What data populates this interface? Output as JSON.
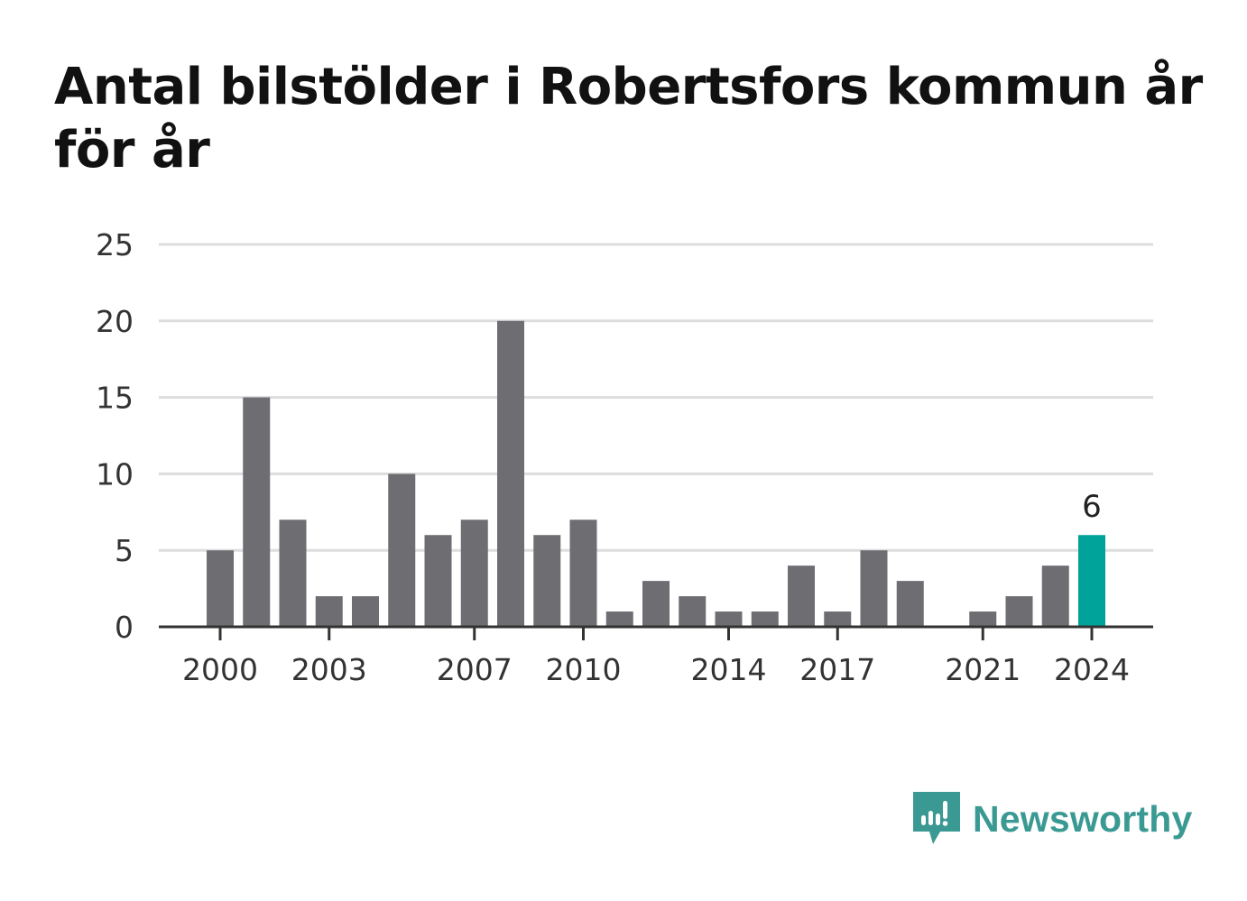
{
  "title": "Antal bilstölder i Robertsfors kommun år för år",
  "brand": {
    "name": "Newsworthy",
    "icon": "newsworthy-logo-icon",
    "color": "#3a9a93"
  },
  "chart_data": {
    "type": "bar",
    "title": "Antal bilstölder i Robertsfors kommun år för år",
    "xlabel": "",
    "ylabel": "",
    "categories": [
      2000,
      2001,
      2002,
      2003,
      2004,
      2005,
      2006,
      2007,
      2008,
      2009,
      2010,
      2011,
      2012,
      2013,
      2014,
      2015,
      2016,
      2017,
      2018,
      2019,
      2020,
      2021,
      2022,
      2023,
      2024
    ],
    "values": [
      5,
      15,
      7,
      2,
      2,
      10,
      6,
      7,
      20,
      6,
      7,
      1,
      3,
      2,
      1,
      1,
      4,
      1,
      5,
      3,
      0,
      1,
      2,
      4,
      6
    ],
    "x_ticks": [
      2000,
      2003,
      2007,
      2010,
      2014,
      2017,
      2021,
      2024
    ],
    "y_ticks": [
      0,
      5,
      10,
      15,
      20,
      25
    ],
    "ylim": [
      0,
      25
    ],
    "grid": true,
    "bar_color": "#6e6d72",
    "highlight_color": "#00a399",
    "highlight_category": 2024,
    "data_labels": [
      {
        "category": 2024,
        "text": "6"
      }
    ]
  }
}
